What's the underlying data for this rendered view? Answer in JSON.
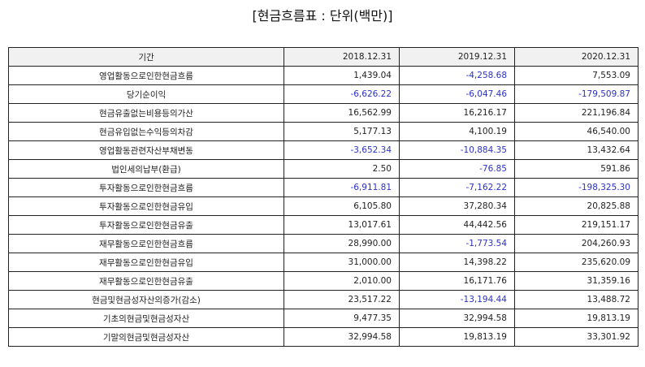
{
  "title": "[현금흐름표 : 단위(백만)]",
  "table": {
    "headers": [
      "기간",
      "2018.12.31",
      "2019.12.31",
      "2020.12.31"
    ],
    "rows": [
      {
        "label": "영업활동으로인한현금흐름",
        "values": [
          "1,439.04",
          "-4,258.68",
          "7,553.09"
        ]
      },
      {
        "label": "당기순이익",
        "values": [
          "-6,626.22",
          "-6,047.46",
          "-179,509.87"
        ]
      },
      {
        "label": "현금유출없는비용등의가산",
        "values": [
          "16,562.99",
          "16,216.17",
          "221,196.84"
        ]
      },
      {
        "label": "현금유입없는수익등의차감",
        "values": [
          "5,177.13",
          "4,100.19",
          "46,540.00"
        ]
      },
      {
        "label": "영업활동관련자산부채변동",
        "values": [
          "-3,652.34",
          "-10,884.35",
          "13,432.64"
        ]
      },
      {
        "label": "법인세의납부(환급)",
        "values": [
          "2.50",
          "-76.85",
          "591.86"
        ]
      },
      {
        "label": "투자활동으로인한현금흐름",
        "values": [
          "-6,911.81",
          "-7,162.22",
          "-198,325.30"
        ]
      },
      {
        "label": "투자활동으로인한현금유입",
        "values": [
          "6,105.80",
          "37,280.34",
          "20,825.88"
        ]
      },
      {
        "label": "투자활동으로인한현금유출",
        "values": [
          "13,017.61",
          "44,442.56",
          "219,151.17"
        ]
      },
      {
        "label": "재무활동으로인한현금흐름",
        "values": [
          "28,990.00",
          "-1,773.54",
          "204,260.93"
        ]
      },
      {
        "label": "재무활동으로인한현금유입",
        "values": [
          "31,000.00",
          "14,398.22",
          "235,620.09"
        ]
      },
      {
        "label": "재무활동으로인한현금유출",
        "values": [
          "2,010.00",
          "16,171.76",
          "31,359.16"
        ]
      },
      {
        "label": "현금및현금성자산의증가(감소)",
        "values": [
          "23,517.22",
          "-13,194.44",
          "13,488.72"
        ]
      },
      {
        "label": "기초의현금및현금성자산",
        "values": [
          "9,477.35",
          "32,994.58",
          "19,813.19"
        ]
      },
      {
        "label": "기말의현금및현금성자산",
        "values": [
          "32,994.58",
          "19,813.19",
          "33,301.92"
        ]
      }
    ]
  },
  "colors": {
    "negative": "#2c31c6",
    "header_bg": "#f1f1f1",
    "border": "#222222"
  }
}
